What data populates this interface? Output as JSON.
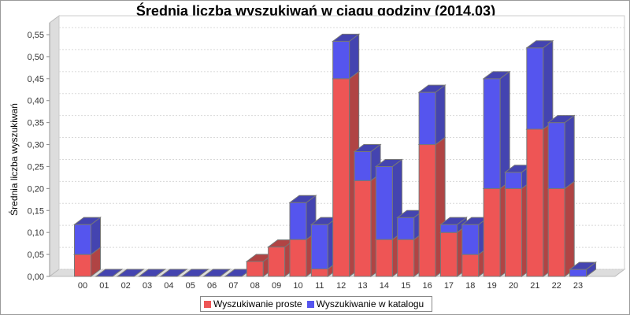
{
  "chart_data": {
    "type": "bar",
    "stacked": true,
    "three_d": true,
    "title": "Średnia liczba wyszukiwań w ciągu godziny (2014.03)",
    "xlabel": "",
    "ylabel": "Średnia liczba wyszukiwań",
    "ylim": [
      0,
      0.55
    ],
    "yticks": [
      "0,00",
      "0,05",
      "0,10",
      "0,15",
      "0,20",
      "0,25",
      "0,30",
      "0,35",
      "0,40",
      "0,45",
      "0,50",
      "0,55"
    ],
    "grid": true,
    "legend_position": "bottom",
    "categories": [
      "00",
      "01",
      "02",
      "03",
      "04",
      "05",
      "06",
      "07",
      "08",
      "09",
      "10",
      "11",
      "12",
      "13",
      "14",
      "15",
      "16",
      "17",
      "18",
      "19",
      "20",
      "21",
      "22",
      "23"
    ],
    "series": [
      {
        "name": "Wyszukiwanie proste",
        "color": "#ee5555",
        "values": [
          0.05,
          0,
          0,
          0,
          0,
          0,
          0,
          0,
          0.034,
          0.067,
          0.084,
          0.017,
          0.45,
          0.218,
          0.084,
          0.084,
          0.3,
          0.1,
          0.05,
          0.2,
          0.2,
          0.335,
          0.2,
          0
        ]
      },
      {
        "name": "Wyszukiwanie w katalogu",
        "color": "#5555ee",
        "values": [
          0.068,
          0,
          0,
          0,
          0,
          0,
          0,
          0,
          0,
          0,
          0.084,
          0.101,
          0.085,
          0.066,
          0.166,
          0.05,
          0.119,
          0.018,
          0.068,
          0.25,
          0.037,
          0.185,
          0.15,
          0.016
        ]
      }
    ]
  }
}
